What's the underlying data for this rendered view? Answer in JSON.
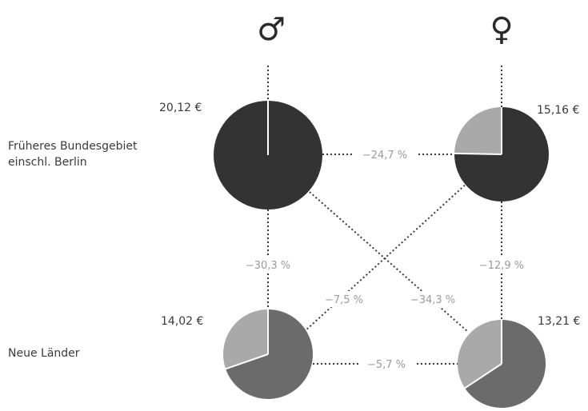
{
  "symbols": {
    "male": "♂",
    "female": "♀"
  },
  "rows": {
    "west": "Früheres Bundesgebiet\neinschl. Berlin",
    "east": "Neue Länder"
  },
  "wages": {
    "west_male": "20,12 €",
    "west_female": "15,16 €",
    "east_male": "14,02 €",
    "east_female": "13,21 €"
  },
  "comparisons": {
    "west_female_vs_male": "−24,7 %",
    "east_female_vs_male": "−5,7 %",
    "male_east_vs_west": "−30,3 %",
    "female_east_vs_west": "−12,9 %",
    "east_male_vs_west_female": "−7,5 %",
    "east_female_vs_west_male": "−34,3 %"
  },
  "pie_shares": {
    "west_male": 1.0,
    "west_female": 0.753,
    "east_male": 0.697,
    "east_female": 0.657
  },
  "colors": {
    "west_fill": "#333333",
    "east_fill": "#6b6b6b",
    "remainder_fill": "#a9a9a9",
    "line": "#3a3a3a",
    "percent_text": "#9a9a9a"
  }
}
